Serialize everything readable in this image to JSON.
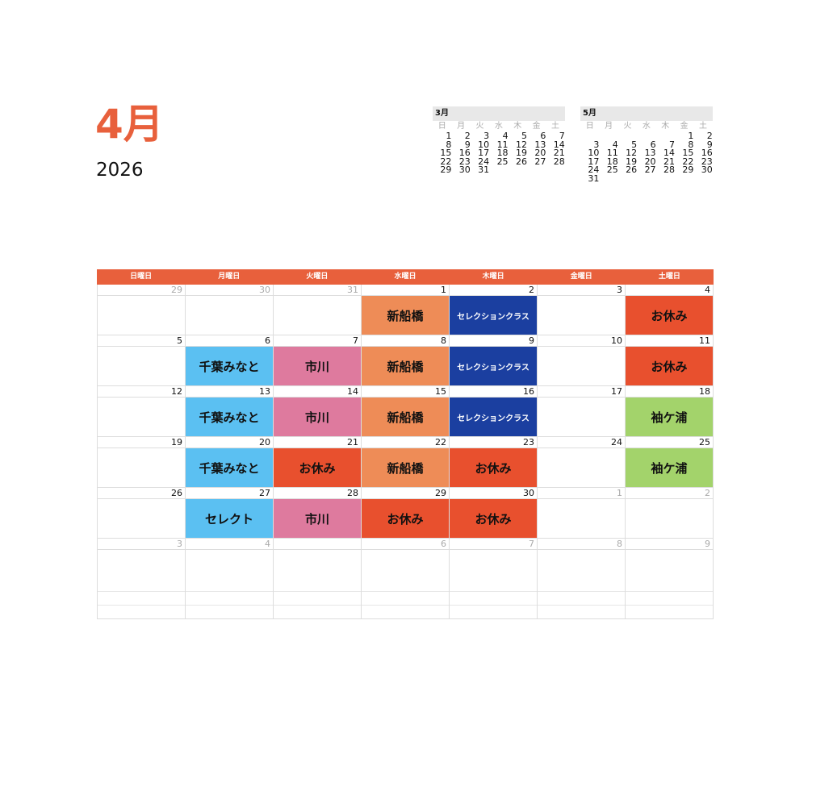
{
  "header": {
    "month": "4月",
    "year": "2026"
  },
  "weekdays_short": [
    "日",
    "月",
    "火",
    "水",
    "木",
    "金",
    "土"
  ],
  "mini_calendars": [
    {
      "title": "3月",
      "weeks": [
        [
          "1",
          "2",
          "3",
          "4",
          "5",
          "6",
          "7"
        ],
        [
          "8",
          "9",
          "10",
          "11",
          "12",
          "13",
          "14"
        ],
        [
          "15",
          "16",
          "17",
          "18",
          "19",
          "20",
          "21"
        ],
        [
          "22",
          "23",
          "24",
          "25",
          "26",
          "27",
          "28"
        ],
        [
          "29",
          "30",
          "31",
          "",
          "",
          "",
          ""
        ]
      ]
    },
    {
      "title": "5月",
      "weeks": [
        [
          "",
          "",
          "",
          "",
          "",
          "1",
          "2"
        ],
        [
          "3",
          "4",
          "5",
          "6",
          "7",
          "8",
          "9"
        ],
        [
          "10",
          "11",
          "12",
          "13",
          "14",
          "15",
          "16"
        ],
        [
          "17",
          "18",
          "19",
          "20",
          "21",
          "22",
          "23"
        ],
        [
          "24",
          "25",
          "26",
          "27",
          "28",
          "29",
          "30"
        ],
        [
          "31",
          "",
          "",
          "",
          "",
          "",
          ""
        ]
      ]
    }
  ],
  "weekdays": [
    "日曜日",
    "月曜日",
    "火曜日",
    "水曜日",
    "木曜日",
    "金曜日",
    "土曜日"
  ],
  "colors": {
    "accent": "#e8603c",
    "shinfunabashi": "#ee8c57",
    "selection": "#1b3fa0",
    "oyasumi": "#e8502e",
    "chiba": "#5bc0f2",
    "ichikawa": "#de7a9e",
    "sodegaura": "#a3d36b"
  },
  "weeks": [
    [
      {
        "day": "29",
        "other": true
      },
      {
        "day": "30",
        "other": true
      },
      {
        "day": "31",
        "other": true
      },
      {
        "day": "1",
        "event": {
          "label": "新船橋",
          "color": "#ee8c57"
        }
      },
      {
        "day": "2",
        "event": {
          "label": "セレクションクラス",
          "color": "#1b3fa0",
          "small": true
        }
      },
      {
        "day": "3"
      },
      {
        "day": "4",
        "event": {
          "label": "お休み",
          "color": "#e8502e"
        }
      }
    ],
    [
      {
        "day": "5"
      },
      {
        "day": "6",
        "event": {
          "label": "千葉みなと",
          "color": "#5bc0f2"
        }
      },
      {
        "day": "7",
        "event": {
          "label": "市川",
          "color": "#de7a9e"
        }
      },
      {
        "day": "8",
        "event": {
          "label": "新船橋",
          "color": "#ee8c57"
        }
      },
      {
        "day": "9",
        "event": {
          "label": "セレクションクラス",
          "color": "#1b3fa0",
          "small": true
        }
      },
      {
        "day": "10"
      },
      {
        "day": "11",
        "event": {
          "label": "お休み",
          "color": "#e8502e"
        }
      }
    ],
    [
      {
        "day": "12"
      },
      {
        "day": "13",
        "event": {
          "label": "千葉みなと",
          "color": "#5bc0f2"
        }
      },
      {
        "day": "14",
        "event": {
          "label": "市川",
          "color": "#de7a9e"
        }
      },
      {
        "day": "15",
        "event": {
          "label": "新船橋",
          "color": "#ee8c57"
        }
      },
      {
        "day": "16",
        "event": {
          "label": "セレクションクラス",
          "color": "#1b3fa0",
          "small": true
        }
      },
      {
        "day": "17"
      },
      {
        "day": "18",
        "event": {
          "label": "袖ケ浦",
          "color": "#a3d36b"
        }
      }
    ],
    [
      {
        "day": "19"
      },
      {
        "day": "20",
        "event": {
          "label": "千葉みなと",
          "color": "#5bc0f2"
        }
      },
      {
        "day": "21",
        "event": {
          "label": "お休み",
          "color": "#e8502e"
        }
      },
      {
        "day": "22",
        "event": {
          "label": "新船橋",
          "color": "#ee8c57"
        }
      },
      {
        "day": "23",
        "event": {
          "label": "お休み",
          "color": "#e8502e"
        }
      },
      {
        "day": "24"
      },
      {
        "day": "25",
        "event": {
          "label": "袖ケ浦",
          "color": "#a3d36b"
        }
      }
    ],
    [
      {
        "day": "26"
      },
      {
        "day": "27",
        "event": {
          "label": "セレクト",
          "color": "#5bc0f2"
        }
      },
      {
        "day": "28",
        "event": {
          "label": "市川",
          "color": "#de7a9e"
        }
      },
      {
        "day": "29",
        "event": {
          "label": "お休み",
          "color": "#e8502e"
        }
      },
      {
        "day": "30",
        "event": {
          "label": "お休み",
          "color": "#e8502e"
        }
      },
      {
        "day": "1",
        "other": true
      },
      {
        "day": "2",
        "other": true
      }
    ],
    [
      {
        "day": "3",
        "other": true
      },
      {
        "day": "4",
        "other": true
      },
      {
        "day": "",
        "other": true
      },
      {
        "day": "6",
        "other": true
      },
      {
        "day": "7",
        "other": true
      },
      {
        "day": "8",
        "other": true
      },
      {
        "day": "9",
        "other": true
      }
    ]
  ]
}
